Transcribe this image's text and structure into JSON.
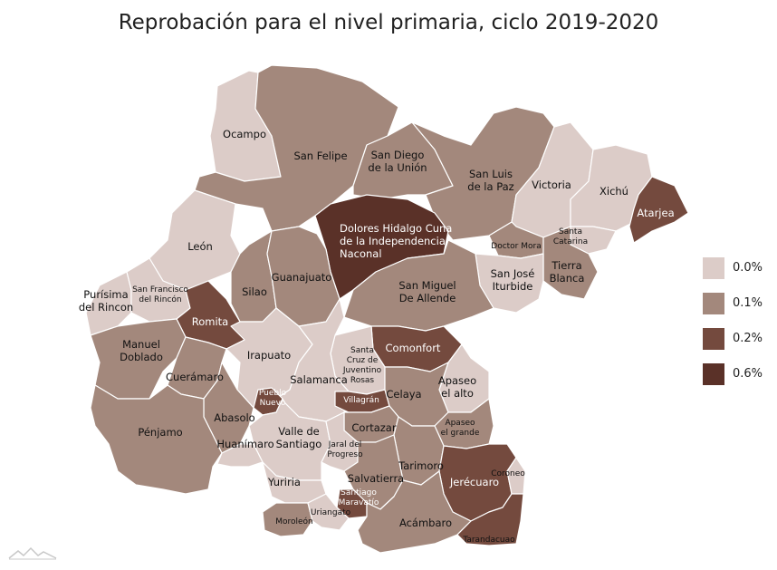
{
  "title": "Reprobación para el nivel primaria, ciclo 2019-2020",
  "colors": {
    "c0": "#dcccc8",
    "c1": "#a3887c",
    "c2": "#744a3e",
    "c6": "#5a3128"
  },
  "legend": [
    {
      "label": "0.0%",
      "color": "#dcccc8"
    },
    {
      "label": "0.1%",
      "color": "#a3887c"
    },
    {
      "label": "0.2%",
      "color": "#744a3e"
    },
    {
      "label": "0.6%",
      "color": "#5a3128"
    }
  ],
  "regions": [
    {
      "id": "ocampo",
      "lines": [
        "Ocampo"
      ],
      "value": "0.0%",
      "cls": "c0"
    },
    {
      "id": "san-felipe",
      "lines": [
        "San Felipe"
      ],
      "value": "0.1%",
      "cls": "c1"
    },
    {
      "id": "san-diego",
      "lines": [
        "San Diego",
        "de la Unión"
      ],
      "value": "0.1%",
      "cls": "c1"
    },
    {
      "id": "san-luis",
      "lines": [
        "San Luis",
        "de la Paz"
      ],
      "value": "0.1%",
      "cls": "c1"
    },
    {
      "id": "victoria",
      "lines": [
        "Victoria"
      ],
      "value": "0.0%",
      "cls": "c0"
    },
    {
      "id": "xichu",
      "lines": [
        "Xichú"
      ],
      "value": "0.0%",
      "cls": "c0"
    },
    {
      "id": "atarjea",
      "lines": [
        "Atarjea"
      ],
      "value": "0.2%",
      "cls": "c2"
    },
    {
      "id": "leon",
      "lines": [
        "León"
      ],
      "value": "0.0%",
      "cls": "c0"
    },
    {
      "id": "dolores",
      "lines": [
        "Dolores Hidalgo Cuna",
        "de la Independencia",
        "Naconal"
      ],
      "value": "0.6%",
      "cls": "c6"
    },
    {
      "id": "santa-catarina",
      "lines": [
        "Santa",
        "Catarina"
      ],
      "value": "0.0%",
      "cls": "c0"
    },
    {
      "id": "doctor-mora",
      "lines": [
        "Doctor Mora"
      ],
      "value": "0.1%",
      "cls": "c1"
    },
    {
      "id": "tierra-blanca",
      "lines": [
        "Tierra",
        "Blanca"
      ],
      "value": "0.1%",
      "cls": "c1"
    },
    {
      "id": "san-jose",
      "lines": [
        "San José",
        "Iturbide"
      ],
      "value": "0.0%",
      "cls": "c0"
    },
    {
      "id": "purisima",
      "lines": [
        "Purísima",
        "del Rincon"
      ],
      "value": "0.0%",
      "cls": "c0"
    },
    {
      "id": "san-francisco",
      "lines": [
        "San Francisco",
        "del Rincón"
      ],
      "value": "0.0%",
      "cls": "c0"
    },
    {
      "id": "silao",
      "lines": [
        "Silao"
      ],
      "value": "0.1%",
      "cls": "c1"
    },
    {
      "id": "guanajuato",
      "lines": [
        "Guanajuato"
      ],
      "value": "0.1%",
      "cls": "c1"
    },
    {
      "id": "san-miguel",
      "lines": [
        "San Miguel",
        "De Allende"
      ],
      "value": "0.1%",
      "cls": "c1"
    },
    {
      "id": "romita",
      "lines": [
        "Romita"
      ],
      "value": "0.2%",
      "cls": "c2"
    },
    {
      "id": "manuel-doblado",
      "lines": [
        "Manuel",
        "Doblado"
      ],
      "value": "0.1%",
      "cls": "c1"
    },
    {
      "id": "irapuato",
      "lines": [
        "Irapuato"
      ],
      "value": "0.0%",
      "cls": "c0"
    },
    {
      "id": "comonfort",
      "lines": [
        "Comonfort"
      ],
      "value": "0.2%",
      "cls": "c2"
    },
    {
      "id": "santa-cruz",
      "lines": [
        "Santa",
        "Cruz de",
        "Juventino",
        "Rosas"
      ],
      "value": "0.0%",
      "cls": "c0"
    },
    {
      "id": "cueramaro",
      "lines": [
        "Cuerámaro"
      ],
      "value": "0.1%",
      "cls": "c1"
    },
    {
      "id": "salamanca",
      "lines": [
        "Salamanca"
      ],
      "value": "0.0%",
      "cls": "c0"
    },
    {
      "id": "apaseo-alto",
      "lines": [
        "Apaseo",
        "el alto"
      ],
      "value": "0.0%",
      "cls": "c0"
    },
    {
      "id": "pueblo-nuevo",
      "lines": [
        "Pueblo",
        "Nuevo"
      ],
      "value": "0.2%",
      "cls": "c2"
    },
    {
      "id": "villagran",
      "lines": [
        "Villagrán"
      ],
      "value": "0.2%",
      "cls": "c2"
    },
    {
      "id": "celaya",
      "lines": [
        "Celaya"
      ],
      "value": "0.1%",
      "cls": "c1"
    },
    {
      "id": "abasolo",
      "lines": [
        "Abasolo"
      ],
      "value": "0.1%",
      "cls": "c1"
    },
    {
      "id": "penjamo",
      "lines": [
        "Pénjamo"
      ],
      "value": "0.1%",
      "cls": "c1"
    },
    {
      "id": "cortazar",
      "lines": [
        "Cortazar"
      ],
      "value": "0.1%",
      "cls": "c1"
    },
    {
      "id": "apaseo-grande",
      "lines": [
        "Apaseo",
        "el grande"
      ],
      "value": "0.1%",
      "cls": "c1"
    },
    {
      "id": "valle",
      "lines": [
        "Valle de",
        "Santiago"
      ],
      "value": "0.0%",
      "cls": "c0"
    },
    {
      "id": "huanimaro",
      "lines": [
        "Huanímaro"
      ],
      "value": "0.0%",
      "cls": "c0"
    },
    {
      "id": "jaral",
      "lines": [
        "Jaral del",
        "Progreso"
      ],
      "value": "0.0%",
      "cls": "c0"
    },
    {
      "id": "tarimoro",
      "lines": [
        "Tarimoro"
      ],
      "value": "0.1%",
      "cls": "c1"
    },
    {
      "id": "jerecuaro",
      "lines": [
        "Jerécuaro"
      ],
      "value": "0.2%",
      "cls": "c2"
    },
    {
      "id": "coroneo",
      "lines": [
        "Coroneo"
      ],
      "value": "0.0%",
      "cls": "c0"
    },
    {
      "id": "yuriria",
      "lines": [
        "Yuriria"
      ],
      "value": "0.0%",
      "cls": "c0"
    },
    {
      "id": "salvatierra",
      "lines": [
        "Salvatierra"
      ],
      "value": "0.1%",
      "cls": "c1"
    },
    {
      "id": "santiago-maravatio",
      "lines": [
        "Santiago",
        "Maravatío"
      ],
      "value": "0.2%",
      "cls": "c2"
    },
    {
      "id": "moroleon",
      "lines": [
        "Moroleón"
      ],
      "value": "0.1%",
      "cls": "c1"
    },
    {
      "id": "uriangato",
      "lines": [
        "Uriangato"
      ],
      "value": "0.0%",
      "cls": "c0"
    },
    {
      "id": "acambaro",
      "lines": [
        "Acámbaro"
      ],
      "value": "0.1%",
      "cls": "c1"
    },
    {
      "id": "tarandacuao",
      "lines": [
        "Tarandacuao"
      ],
      "value": "0.2%",
      "cls": "c2"
    }
  ]
}
